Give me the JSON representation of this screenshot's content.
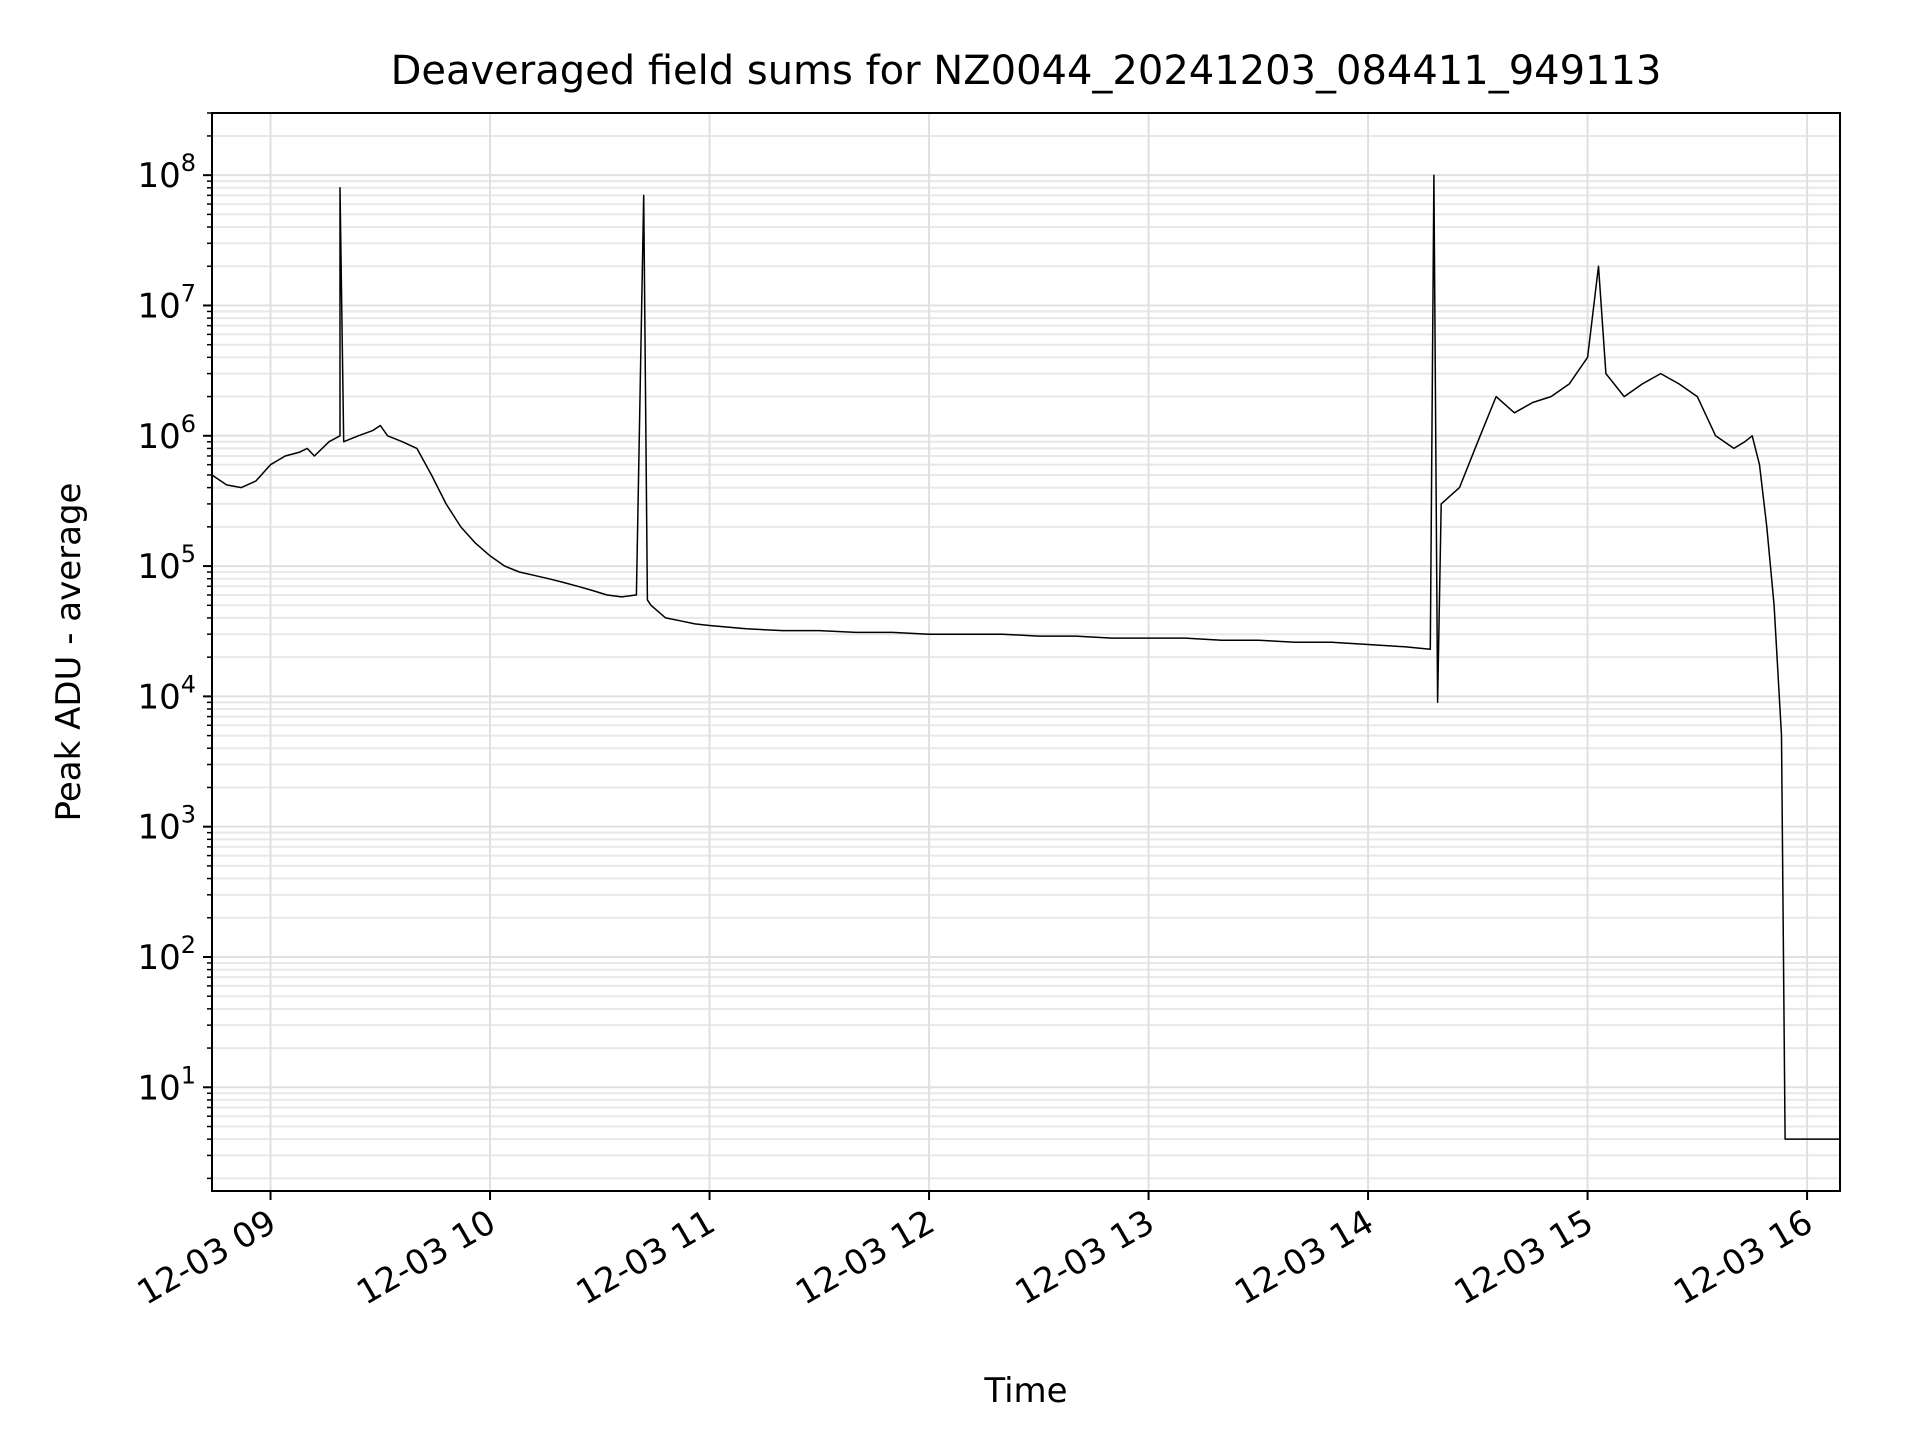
{
  "chart_data": {
    "type": "line",
    "title": "Deaveraged field sums for NZ0044_20241203_084411_949113",
    "xlabel": "Time",
    "ylabel": "Peak ADU - average",
    "yscale": "log",
    "xlim": [
      "2024-12-03 08:44",
      "2024-12-03 16:09"
    ],
    "ylim": [
      1.6,
      300000000
    ],
    "grid": true,
    "legend": "none",
    "line_color": "#000000",
    "x_ticks": [
      {
        "value": "2024-12-03 09:00",
        "label": "12-03 09"
      },
      {
        "value": "2024-12-03 10:00",
        "label": "12-03 10"
      },
      {
        "value": "2024-12-03 11:00",
        "label": "12-03 11"
      },
      {
        "value": "2024-12-03 12:00",
        "label": "12-03 12"
      },
      {
        "value": "2024-12-03 13:00",
        "label": "12-03 13"
      },
      {
        "value": "2024-12-03 14:00",
        "label": "12-03 14"
      },
      {
        "value": "2024-12-03 15:00",
        "label": "12-03 15"
      },
      {
        "value": "2024-12-03 16:00",
        "label": "12-03 16"
      }
    ],
    "y_ticks": [
      {
        "value": 10,
        "base": "10",
        "exp": "1"
      },
      {
        "value": 100,
        "base": "10",
        "exp": "2"
      },
      {
        "value": 1000,
        "base": "10",
        "exp": "3"
      },
      {
        "value": 10000,
        "base": "10",
        "exp": "4"
      },
      {
        "value": 100000,
        "base": "10",
        "exp": "5"
      },
      {
        "value": 1000000,
        "base": "10",
        "exp": "6"
      },
      {
        "value": 10000000,
        "base": "10",
        "exp": "7"
      },
      {
        "value": 100000000,
        "base": "10",
        "exp": "8"
      }
    ],
    "series": [
      {
        "x": [
          "2024-12-03 08:44",
          "2024-12-03 08:48",
          "2024-12-03 08:52",
          "2024-12-03 08:56",
          "2024-12-03 09:00",
          "2024-12-03 09:04",
          "2024-12-03 09:08",
          "2024-12-03 09:10",
          "2024-12-03 09:12",
          "2024-12-03 09:16",
          "2024-12-03 09:19",
          "2024-12-03 09:19",
          "2024-12-03 09:20",
          "2024-12-03 09:24",
          "2024-12-03 09:28",
          "2024-12-03 09:30",
          "2024-12-03 09:32",
          "2024-12-03 09:36",
          "2024-12-03 09:40",
          "2024-12-03 09:44",
          "2024-12-03 09:48",
          "2024-12-03 09:52",
          "2024-12-03 09:56",
          "2024-12-03 10:00",
          "2024-12-03 10:04",
          "2024-12-03 10:08",
          "2024-12-03 10:12",
          "2024-12-03 10:16",
          "2024-12-03 10:20",
          "2024-12-03 10:24",
          "2024-12-03 10:28",
          "2024-12-03 10:32",
          "2024-12-03 10:36",
          "2024-12-03 10:40",
          "2024-12-03 10:42",
          "2024-12-03 10:43",
          "2024-12-03 10:44",
          "2024-12-03 10:48",
          "2024-12-03 10:52",
          "2024-12-03 10:56",
          "2024-12-03 11:00",
          "2024-12-03 11:10",
          "2024-12-03 11:20",
          "2024-12-03 11:30",
          "2024-12-03 11:40",
          "2024-12-03 11:50",
          "2024-12-03 12:00",
          "2024-12-03 12:10",
          "2024-12-03 12:20",
          "2024-12-03 12:30",
          "2024-12-03 12:40",
          "2024-12-03 12:50",
          "2024-12-03 13:00",
          "2024-12-03 13:10",
          "2024-12-03 13:20",
          "2024-12-03 13:30",
          "2024-12-03 13:40",
          "2024-12-03 13:50",
          "2024-12-03 14:00",
          "2024-12-03 14:10",
          "2024-12-03 14:17",
          "2024-12-03 14:18",
          "2024-12-03 14:19",
          "2024-12-03 14:20",
          "2024-12-03 14:25",
          "2024-12-03 14:30",
          "2024-12-03 14:35",
          "2024-12-03 14:40",
          "2024-12-03 14:45",
          "2024-12-03 14:50",
          "2024-12-03 14:55",
          "2024-12-03 15:00",
          "2024-12-03 15:03",
          "2024-12-03 15:05",
          "2024-12-03 15:10",
          "2024-12-03 15:15",
          "2024-12-03 15:20",
          "2024-12-03 15:25",
          "2024-12-03 15:30",
          "2024-12-03 15:35",
          "2024-12-03 15:40",
          "2024-12-03 15:43",
          "2024-12-03 15:45",
          "2024-12-03 15:47",
          "2024-12-03 15:49",
          "2024-12-03 15:51",
          "2024-12-03 15:53",
          "2024-12-03 15:54",
          "2024-12-03 16:09"
        ],
        "y": [
          500000,
          420000,
          400000,
          450000,
          600000,
          700000,
          750000,
          800000,
          700000,
          900000,
          1000000,
          80000000,
          900000,
          1000000,
          1100000,
          1200000,
          1000000,
          900000,
          800000,
          500000,
          300000,
          200000,
          150000,
          120000,
          100000,
          90000,
          85000,
          80000,
          75000,
          70000,
          65000,
          60000,
          58000,
          60000,
          70000000,
          55000,
          50000,
          40000,
          38000,
          36000,
          35000,
          33000,
          32000,
          32000,
          31000,
          31000,
          30000,
          30000,
          30000,
          29000,
          29000,
          28000,
          28000,
          28000,
          27000,
          27000,
          26000,
          26000,
          25000,
          24000,
          23000,
          100000000,
          9000,
          300000,
          400000,
          900000,
          2000000,
          1500000,
          1800000,
          2000000,
          2500000,
          4000000,
          20000000,
          3000000,
          2000000,
          2500000,
          3000000,
          2500000,
          2000000,
          1000000,
          800000,
          900000,
          1000000,
          600000,
          200000,
          50000,
          5000,
          4,
          4
        ]
      }
    ],
    "annotations": []
  }
}
